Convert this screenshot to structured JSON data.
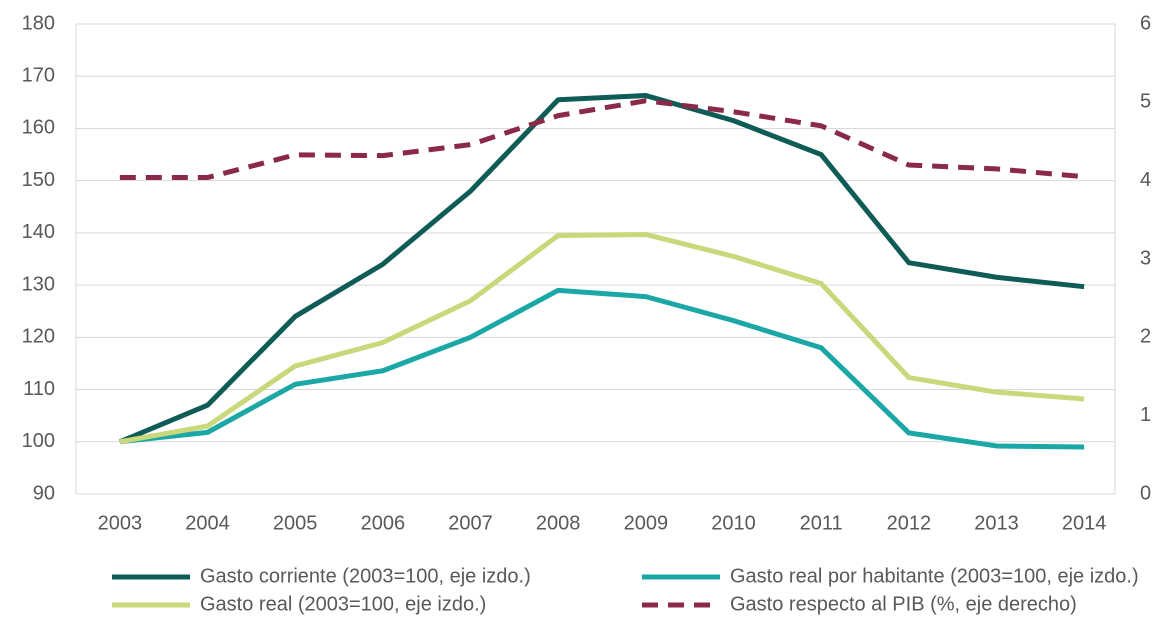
{
  "chart_data": {
    "type": "line",
    "categories": [
      "2003",
      "2004",
      "2005",
      "2006",
      "2007",
      "2008",
      "2009",
      "2010",
      "2011",
      "2012",
      "2013",
      "2014"
    ],
    "series": [
      {
        "name": "Gasto corriente (2003=100, eje izdo.)",
        "color": "#0f5c57",
        "line_style": "solid",
        "values": [
          100,
          107,
          124,
          134,
          148,
          165.5,
          166.3,
          161.5,
          155,
          134.3,
          131.5,
          129.7
        ]
      },
      {
        "name": "Gasto real por habitante (2003=100, eje izdo.)",
        "color": "#1aa7a6",
        "line_style": "solid",
        "values": [
          100,
          101.8,
          111,
          113.6,
          120,
          129,
          127.8,
          123.2,
          118,
          101.7,
          99.2,
          99
        ]
      },
      {
        "name": "Gasto real (2003=100, eje izdo.)",
        "color": "#c8d87a",
        "line_style": "solid",
        "values": [
          100,
          103,
          114.5,
          119,
          127,
          139.5,
          139.7,
          135.5,
          130.3,
          112.3,
          109.5,
          108.2
        ]
      },
      {
        "name": "Gasto respecto al PIB (%, eje derecho)",
        "color": "#8a2a48",
        "line_style": "dashed",
        "axis": "y2",
        "values": [
          4.04,
          4.04,
          4.33,
          4.32,
          4.46,
          4.83,
          5.02,
          4.88,
          4.7,
          4.2,
          4.15,
          4.05
        ]
      }
    ],
    "ylim": [
      90,
      180
    ],
    "yticks": [
      90,
      100,
      110,
      120,
      130,
      140,
      150,
      160,
      170,
      180
    ],
    "y2lim": [
      0,
      6
    ],
    "y2ticks": [
      0,
      1,
      2,
      3,
      4,
      5,
      6
    ],
    "grid": true,
    "legend": "bottom"
  }
}
